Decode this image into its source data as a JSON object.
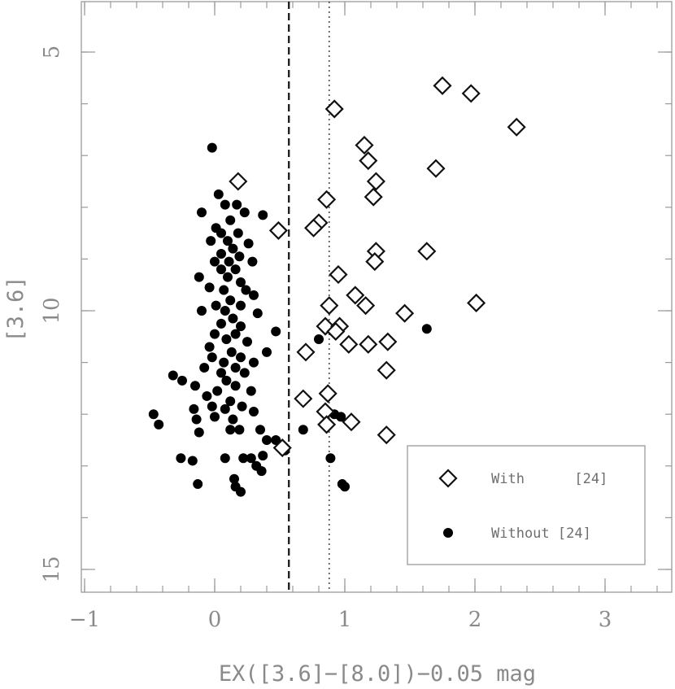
{
  "chart_data": {
    "type": "scatter",
    "xlabel": "EX([3.6]−[8.0])−0.05 mag",
    "ylabel": "[3.6]",
    "xlim": [
      -1,
      3.5
    ],
    "ylim": [
      15.5,
      4
    ],
    "y_inverted": true,
    "x_ticks": [
      -1,
      0,
      1,
      2,
      3
    ],
    "x_tick_labels": [
      "−1",
      "0",
      "1",
      "2",
      "3"
    ],
    "y_ticks": [
      5,
      10,
      15
    ],
    "y_tick_labels": [
      "5",
      "10",
      "15"
    ],
    "reference_lines": [
      {
        "x": 0.57,
        "style": "dashed"
      },
      {
        "x": 0.88,
        "style": "dotted"
      }
    ],
    "legend_position": "bottom-right",
    "series": [
      {
        "name": "With      [24]",
        "marker": "open-diamond",
        "points": [
          [
            1.75,
            5.65
          ],
          [
            1.97,
            5.8
          ],
          [
            0.92,
            6.1
          ],
          [
            2.32,
            6.45
          ],
          [
            1.15,
            6.8
          ],
          [
            1.18,
            7.1
          ],
          [
            1.7,
            7.25
          ],
          [
            0.18,
            7.5
          ],
          [
            1.24,
            7.5
          ],
          [
            1.22,
            7.8
          ],
          [
            0.86,
            7.85
          ],
          [
            0.8,
            8.3
          ],
          [
            0.76,
            8.4
          ],
          [
            0.49,
            8.45
          ],
          [
            1.24,
            8.85
          ],
          [
            1.63,
            8.85
          ],
          [
            1.23,
            9.05
          ],
          [
            0.95,
            9.3
          ],
          [
            1.08,
            9.7
          ],
          [
            1.16,
            9.9
          ],
          [
            0.88,
            9.9
          ],
          [
            2.01,
            9.85
          ],
          [
            1.46,
            10.05
          ],
          [
            0.85,
            10.3
          ],
          [
            0.96,
            10.3
          ],
          [
            0.93,
            10.4
          ],
          [
            1.33,
            10.6
          ],
          [
            1.03,
            10.65
          ],
          [
            1.18,
            10.65
          ],
          [
            0.7,
            10.8
          ],
          [
            1.32,
            11.15
          ],
          [
            0.87,
            11.6
          ],
          [
            0.68,
            11.7
          ],
          [
            0.85,
            11.95
          ],
          [
            0.86,
            12.2
          ],
          [
            1.05,
            12.15
          ],
          [
            1.32,
            12.4
          ],
          [
            0.52,
            12.65
          ]
        ]
      },
      {
        "name": "Without [24]",
        "marker": "filled-circle",
        "points": [
          [
            -0.02,
            6.85
          ],
          [
            0.03,
            7.75
          ],
          [
            0.08,
            7.95
          ],
          [
            0.17,
            7.95
          ],
          [
            -0.1,
            8.1
          ],
          [
            0.23,
            8.1
          ],
          [
            0.37,
            8.15
          ],
          [
            0.12,
            8.25
          ],
          [
            0.01,
            8.4
          ],
          [
            0.05,
            8.5
          ],
          [
            0.18,
            8.5
          ],
          [
            -0.03,
            8.65
          ],
          [
            0.1,
            8.65
          ],
          [
            0.26,
            8.7
          ],
          [
            0.14,
            8.8
          ],
          [
            0.05,
            8.9
          ],
          [
            0.19,
            8.95
          ],
          [
            0.0,
            9.05
          ],
          [
            0.11,
            9.05
          ],
          [
            0.29,
            9.05
          ],
          [
            0.05,
            9.2
          ],
          [
            0.16,
            9.2
          ],
          [
            -0.12,
            9.35
          ],
          [
            0.1,
            9.35
          ],
          [
            0.2,
            9.45
          ],
          [
            -0.04,
            9.55
          ],
          [
            0.07,
            9.6
          ],
          [
            0.24,
            9.6
          ],
          [
            0.3,
            9.7
          ],
          [
            0.12,
            9.8
          ],
          [
            0.01,
            9.9
          ],
          [
            0.2,
            9.9
          ],
          [
            0.08,
            10.0
          ],
          [
            -0.1,
            10.0
          ],
          [
            0.33,
            10.05
          ],
          [
            0.14,
            10.15
          ],
          [
            0.05,
            10.25
          ],
          [
            0.2,
            10.3
          ],
          [
            0.47,
            10.4
          ],
          [
            0.0,
            10.45
          ],
          [
            0.16,
            10.45
          ],
          [
            0.09,
            10.55
          ],
          [
            0.25,
            10.6
          ],
          [
            -0.04,
            10.7
          ],
          [
            0.13,
            10.8
          ],
          [
            0.4,
            10.8
          ],
          [
            -0.02,
            10.9
          ],
          [
            0.2,
            10.9
          ],
          [
            0.07,
            11.0
          ],
          [
            0.3,
            11.0
          ],
          [
            -0.08,
            11.1
          ],
          [
            0.16,
            11.1
          ],
          [
            0.05,
            11.2
          ],
          [
            0.23,
            11.2
          ],
          [
            -0.32,
            11.25
          ],
          [
            -0.25,
            11.35
          ],
          [
            0.09,
            11.35
          ],
          [
            -0.15,
            11.45
          ],
          [
            0.16,
            11.45
          ],
          [
            0.02,
            11.55
          ],
          [
            0.28,
            11.55
          ],
          [
            -0.06,
            11.65
          ],
          [
            0.12,
            11.75
          ],
          [
            -0.02,
            11.85
          ],
          [
            0.21,
            11.85
          ],
          [
            -0.16,
            11.9
          ],
          [
            0.08,
            11.9
          ],
          [
            0.3,
            11.95
          ],
          [
            0.0,
            12.05
          ],
          [
            -0.14,
            12.1
          ],
          [
            0.14,
            12.1
          ],
          [
            -0.47,
            12.0
          ],
          [
            -0.43,
            12.2
          ],
          [
            0.19,
            12.3
          ],
          [
            0.12,
            12.3
          ],
          [
            0.35,
            12.3
          ],
          [
            -0.12,
            12.35
          ],
          [
            0.68,
            12.3
          ],
          [
            0.92,
            12.0
          ],
          [
            0.97,
            12.05
          ],
          [
            0.8,
            10.55
          ],
          [
            1.63,
            10.35
          ],
          [
            0.4,
            12.5
          ],
          [
            0.47,
            12.5
          ],
          [
            0.54,
            12.7
          ],
          [
            0.37,
            12.8
          ],
          [
            0.08,
            12.85
          ],
          [
            0.28,
            12.85
          ],
          [
            0.22,
            12.85
          ],
          [
            -0.26,
            12.85
          ],
          [
            -0.17,
            12.9
          ],
          [
            0.89,
            12.85
          ],
          [
            0.32,
            13.0
          ],
          [
            0.36,
            13.1
          ],
          [
            0.15,
            13.25
          ],
          [
            -0.13,
            13.35
          ],
          [
            0.98,
            13.35
          ],
          [
            1.0,
            13.4
          ],
          [
            0.16,
            13.4
          ],
          [
            0.2,
            13.5
          ]
        ]
      }
    ]
  }
}
